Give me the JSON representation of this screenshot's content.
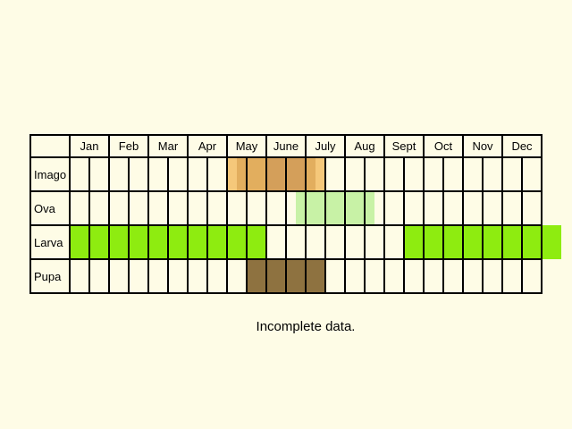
{
  "months": [
    "Jan",
    "Feb",
    "Mar",
    "Apr",
    "May",
    "June",
    "July",
    "Aug",
    "Sept",
    "Oct",
    "Nov",
    "Dec"
  ],
  "stages": [
    {
      "label": "Imago",
      "bars": [
        {
          "start": 9,
          "end": 9.5,
          "color": "#f5c87a"
        },
        {
          "start": 9.5,
          "end": 11,
          "color": "#e2ae5e"
        },
        {
          "start": 11,
          "end": 13,
          "color": "#d49f5a"
        },
        {
          "start": 13,
          "end": 13.5,
          "color": "#e2ae5e"
        },
        {
          "start": 13.5,
          "end": 14,
          "color": "#f5c87a"
        }
      ]
    },
    {
      "label": "Ova",
      "bars": [
        {
          "start": 12.5,
          "end": 16.5,
          "color": "#c8f2a6"
        }
      ]
    },
    {
      "label": "Larva",
      "bars": [
        {
          "start": 1,
          "end": 11,
          "color": "#8eec10"
        },
        {
          "start": 18,
          "end": 26,
          "color": "#8eec10"
        }
      ]
    },
    {
      "label": "Pupa",
      "bars": [
        {
          "start": 10,
          "end": 14,
          "color": "#8e7240"
        }
      ]
    }
  ],
  "caption": "Incomplete data."
}
